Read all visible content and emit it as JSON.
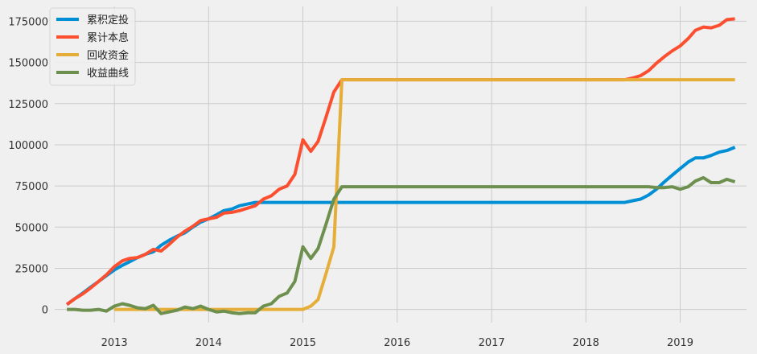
{
  "chart_data": {
    "type": "line",
    "title": "",
    "xlabel": "",
    "ylabel": "",
    "x_ticks": [
      "2013",
      "2014",
      "2015",
      "2016",
      "2017",
      "2018",
      "2019"
    ],
    "y_ticks": [
      "0",
      "25000",
      "50000",
      "75000",
      "100000",
      "125000",
      "150000",
      "175000"
    ],
    "xlim": [
      "2012-05-15",
      "2019-09-15"
    ],
    "ylim": [
      -8000,
      184000
    ],
    "grid": true,
    "legend_position": "top-left",
    "series": [
      {
        "name": "累积定投",
        "color": "#008fd5",
        "points": [
          [
            "2012-07-01",
            3000
          ],
          [
            "2012-08-01",
            6500
          ],
          [
            "2012-09-01",
            10000
          ],
          [
            "2012-10-01",
            13500
          ],
          [
            "2012-11-01",
            17000
          ],
          [
            "2012-12-01",
            20500
          ],
          [
            "2013-01-01",
            24000
          ],
          [
            "2013-02-01",
            26800
          ],
          [
            "2013-03-01",
            29000
          ],
          [
            "2013-04-01",
            31500
          ],
          [
            "2013-05-01",
            33500
          ],
          [
            "2013-06-01",
            35000
          ],
          [
            "2013-07-01",
            39000
          ],
          [
            "2013-08-01",
            42000
          ],
          [
            "2013-09-01",
            44500
          ],
          [
            "2013-10-01",
            46500
          ],
          [
            "2013-11-01",
            50000
          ],
          [
            "2013-12-01",
            53000
          ],
          [
            "2014-01-01",
            55000
          ],
          [
            "2014-02-01",
            57500
          ],
          [
            "2014-03-01",
            60000
          ],
          [
            "2014-04-01",
            61000
          ],
          [
            "2014-05-01",
            63000
          ],
          [
            "2014-06-01",
            64000
          ],
          [
            "2014-07-01",
            65000
          ],
          [
            "2015-01-01",
            65000
          ],
          [
            "2016-01-01",
            65000
          ],
          [
            "2017-01-01",
            65000
          ],
          [
            "2018-01-01",
            65000
          ],
          [
            "2018-06-01",
            65000
          ],
          [
            "2018-07-01",
            66000
          ],
          [
            "2018-08-01",
            67000
          ],
          [
            "2018-09-01",
            69500
          ],
          [
            "2018-10-01",
            73000
          ],
          [
            "2018-11-01",
            77500
          ],
          [
            "2018-12-01",
            81500
          ],
          [
            "2019-01-01",
            85500
          ],
          [
            "2019-02-01",
            89500
          ],
          [
            "2019-03-01",
            92000
          ],
          [
            "2019-04-01",
            92000
          ],
          [
            "2019-05-01",
            93500
          ],
          [
            "2019-06-01",
            95500
          ],
          [
            "2019-07-01",
            96500
          ],
          [
            "2019-08-01",
            98500
          ]
        ]
      },
      {
        "name": "累计本息",
        "color": "#fc4f30",
        "points": [
          [
            "2012-07-01",
            3000
          ],
          [
            "2012-08-01",
            6500
          ],
          [
            "2012-09-01",
            9500
          ],
          [
            "2012-10-01",
            13000
          ],
          [
            "2012-11-01",
            17000
          ],
          [
            "2012-12-01",
            21000
          ],
          [
            "2013-01-01",
            26000
          ],
          [
            "2013-02-01",
            29500
          ],
          [
            "2013-03-01",
            31000
          ],
          [
            "2013-04-01",
            31500
          ],
          [
            "2013-05-01",
            33500
          ],
          [
            "2013-06-01",
            36500
          ],
          [
            "2013-07-01",
            35500
          ],
          [
            "2013-08-01",
            39500
          ],
          [
            "2013-09-01",
            44000
          ],
          [
            "2013-10-01",
            47500
          ],
          [
            "2013-11-01",
            50500
          ],
          [
            "2013-12-01",
            54000
          ],
          [
            "2014-01-01",
            55000
          ],
          [
            "2014-02-01",
            56000
          ],
          [
            "2014-03-01",
            58500
          ],
          [
            "2014-04-01",
            59000
          ],
          [
            "2014-05-01",
            60000
          ],
          [
            "2014-06-01",
            61500
          ],
          [
            "2014-07-01",
            63000
          ],
          [
            "2014-08-01",
            67000
          ],
          [
            "2014-09-01",
            69000
          ],
          [
            "2014-10-01",
            73000
          ],
          [
            "2014-11-01",
            75000
          ],
          [
            "2014-12-01",
            82000
          ],
          [
            "2015-01-01",
            103000
          ],
          [
            "2015-02-01",
            96000
          ],
          [
            "2015-03-01",
            102000
          ],
          [
            "2015-04-01",
            117000
          ],
          [
            "2015-05-01",
            132000
          ],
          [
            "2015-06-01",
            139500
          ],
          [
            "2016-01-01",
            139500
          ],
          [
            "2017-01-01",
            139500
          ],
          [
            "2018-01-01",
            139500
          ],
          [
            "2018-06-01",
            139500
          ],
          [
            "2018-07-01",
            140500
          ],
          [
            "2018-08-01",
            142000
          ],
          [
            "2018-09-01",
            145000
          ],
          [
            "2018-10-01",
            149500
          ],
          [
            "2018-11-01",
            153500
          ],
          [
            "2018-12-01",
            157000
          ],
          [
            "2019-01-01",
            160000
          ],
          [
            "2019-02-01",
            164500
          ],
          [
            "2019-03-01",
            169500
          ],
          [
            "2019-04-01",
            171500
          ],
          [
            "2019-05-01",
            171000
          ],
          [
            "2019-06-01",
            172500
          ],
          [
            "2019-07-01",
            176000
          ],
          [
            "2019-08-01",
            176500
          ]
        ]
      },
      {
        "name": "回收资金",
        "color": "#e5ae38",
        "points": [
          [
            "2013-01-01",
            0
          ],
          [
            "2014-01-01",
            0
          ],
          [
            "2015-01-01",
            0
          ],
          [
            "2015-02-01",
            2000
          ],
          [
            "2015-03-01",
            6000
          ],
          [
            "2015-04-01",
            22000
          ],
          [
            "2015-05-01",
            38000
          ],
          [
            "2015-06-01",
            139500
          ],
          [
            "2016-01-01",
            139500
          ],
          [
            "2017-01-01",
            139500
          ],
          [
            "2018-01-01",
            139500
          ],
          [
            "2019-01-01",
            139500
          ],
          [
            "2019-08-01",
            139500
          ]
        ]
      },
      {
        "name": "收益曲线",
        "color": "#6d904f",
        "points": [
          [
            "2012-07-01",
            0
          ],
          [
            "2012-08-01",
            0
          ],
          [
            "2012-09-01",
            -500
          ],
          [
            "2012-10-01",
            -500
          ],
          [
            "2012-11-01",
            0
          ],
          [
            "2012-12-01",
            -1000
          ],
          [
            "2013-01-01",
            2000
          ],
          [
            "2013-02-01",
            3500
          ],
          [
            "2013-03-01",
            2500
          ],
          [
            "2013-04-01",
            1000
          ],
          [
            "2013-05-01",
            500
          ],
          [
            "2013-06-01",
            2500
          ],
          [
            "2013-07-01",
            -2500
          ],
          [
            "2013-08-01",
            -1500
          ],
          [
            "2013-09-01",
            -500
          ],
          [
            "2013-10-01",
            1500
          ],
          [
            "2013-11-01",
            500
          ],
          [
            "2013-12-01",
            2000
          ],
          [
            "2014-01-01",
            0
          ],
          [
            "2014-02-01",
            -1500
          ],
          [
            "2014-03-01",
            -1000
          ],
          [
            "2014-04-01",
            -2000
          ],
          [
            "2014-05-01",
            -2500
          ],
          [
            "2014-06-01",
            -2000
          ],
          [
            "2014-07-01",
            -2000
          ],
          [
            "2014-08-01",
            2000
          ],
          [
            "2014-09-01",
            3500
          ],
          [
            "2014-10-01",
            8000
          ],
          [
            "2014-11-01",
            10000
          ],
          [
            "2014-12-01",
            17000
          ],
          [
            "2015-01-01",
            38000
          ],
          [
            "2015-02-01",
            31000
          ],
          [
            "2015-03-01",
            37000
          ],
          [
            "2015-04-01",
            52000
          ],
          [
            "2015-05-01",
            67000
          ],
          [
            "2015-06-01",
            74500
          ],
          [
            "2016-01-01",
            74500
          ],
          [
            "2017-01-01",
            74500
          ],
          [
            "2018-01-01",
            74500
          ],
          [
            "2018-09-01",
            74500
          ],
          [
            "2018-10-01",
            74000
          ],
          [
            "2018-11-01",
            74000
          ],
          [
            "2018-12-01",
            74500
          ],
          [
            "2019-01-01",
            73000
          ],
          [
            "2019-02-01",
            74500
          ],
          [
            "2019-03-01",
            78000
          ],
          [
            "2019-04-01",
            80000
          ],
          [
            "2019-05-01",
            77000
          ],
          [
            "2019-06-01",
            77000
          ],
          [
            "2019-07-01",
            79000
          ],
          [
            "2019-08-01",
            77500
          ]
        ]
      }
    ]
  }
}
